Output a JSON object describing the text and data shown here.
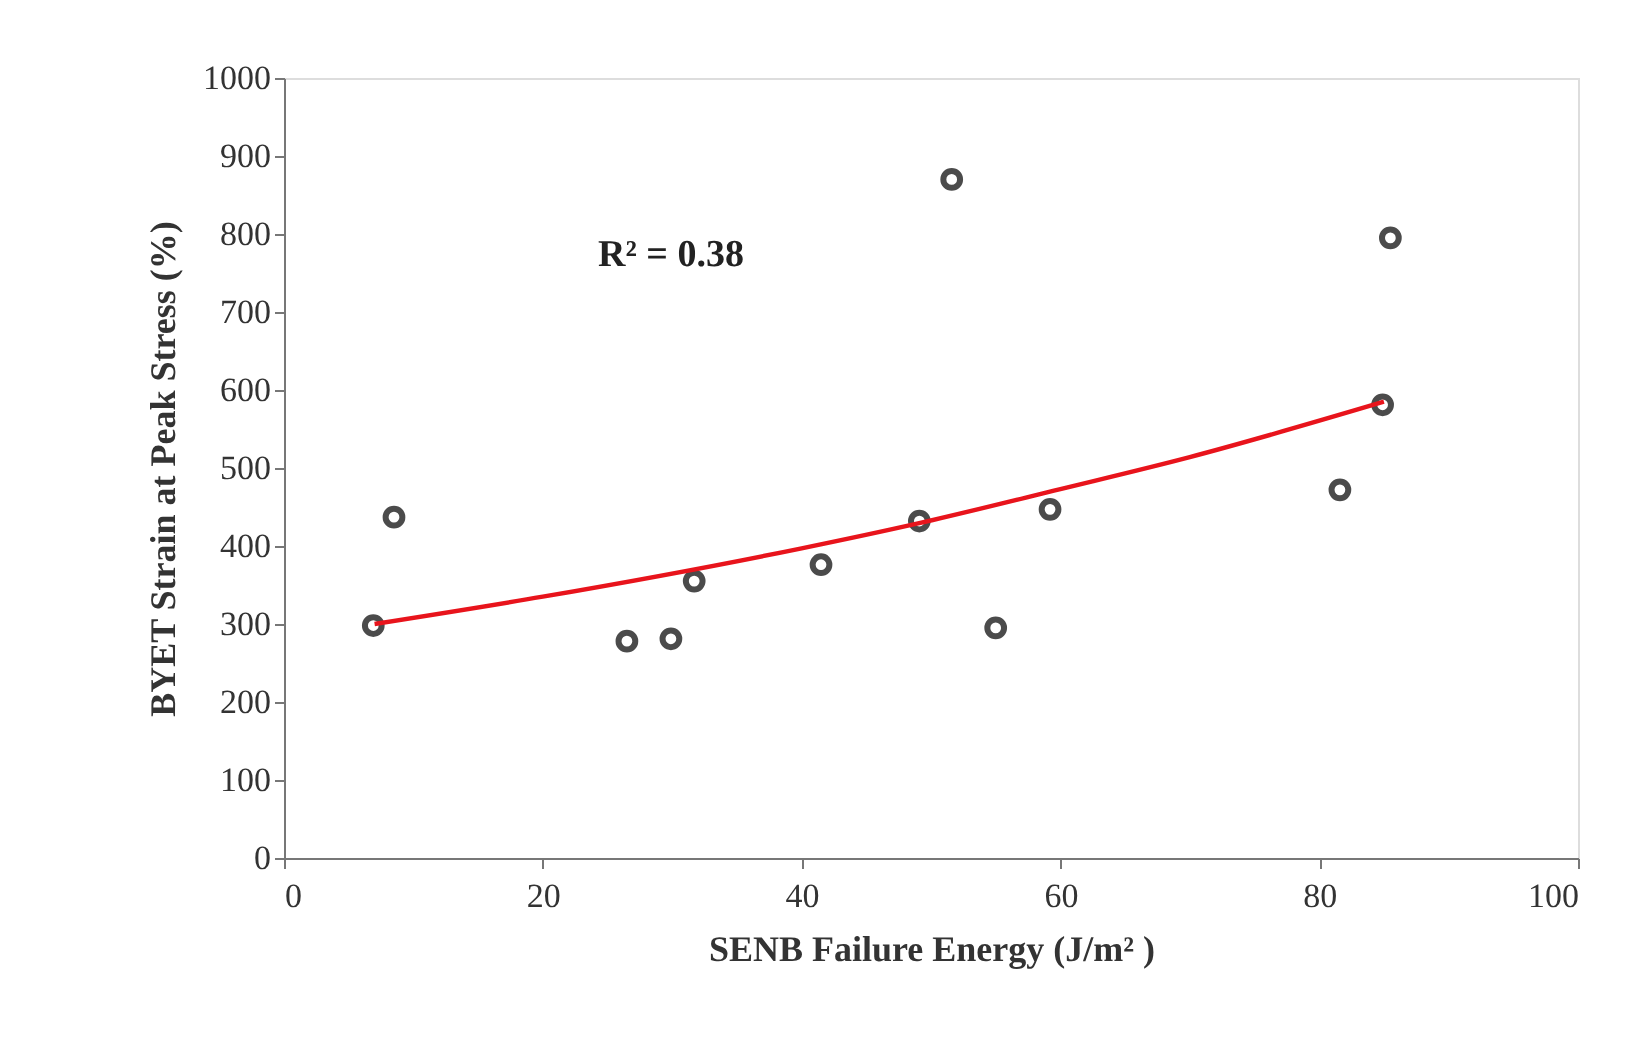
{
  "chart_data": {
    "type": "scatter",
    "xlabel": "SENB Failure Energy (J/m² )",
    "ylabel": "BYET Strain at Peak Stress (%)",
    "xlim": [
      0,
      100
    ],
    "xticks": [
      0,
      20,
      40,
      60,
      80,
      100
    ],
    "ylim": [
      0,
      1000
    ],
    "yticks": [
      0,
      100,
      200,
      300,
      400,
      500,
      600,
      700,
      800,
      900,
      1000
    ],
    "grid": false,
    "marker": "circle",
    "annotations": [
      "R² = 0.38"
    ],
    "series": [
      {
        "color": "#000000",
        "x": [
          6.9,
          8.5,
          26.5,
          29.9,
          31.7,
          41.5,
          49.1,
          51.6,
          55.0,
          59.2,
          81.6,
          84.9,
          85.5
        ],
        "values": [
          298,
          437,
          278,
          281,
          355,
          376,
          432,
          870,
          295,
          447,
          472,
          581,
          795
        ]
      },
      {
        "type": "line",
        "color": "#e8141c",
        "marker": "none",
        "x": [
          7,
          20,
          40,
          49,
          60,
          70,
          85
        ],
        "values": [
          300,
          335,
          397,
          429,
          473,
          514,
          585
        ]
      }
    ]
  }
}
